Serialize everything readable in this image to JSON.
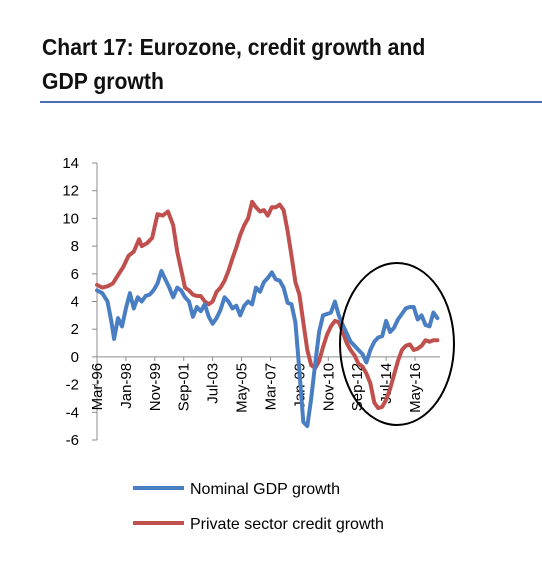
{
  "title": "Chart 17: Eurozone, credit growth and GDP growth",
  "colors": {
    "gdp": "#4a7ec2",
    "credit": "#c0504d",
    "accent_rule": "#4a6fb3"
  },
  "chart_data": {
    "type": "line",
    "title": "Chart 17: Eurozone, credit growth and GDP growth",
    "xlabel": "",
    "ylabel": "",
    "ylim": [
      -6,
      14
    ],
    "yticks": [
      14,
      12,
      10,
      8,
      6,
      4,
      2,
      0,
      -2,
      -4,
      -6
    ],
    "xlim": [
      "1996-03",
      "2017-12"
    ],
    "xticks": [
      {
        "label": "Mar-96",
        "date": "1996-03"
      },
      {
        "label": "Jan-98",
        "date": "1998-01"
      },
      {
        "label": "Nov-99",
        "date": "1999-11"
      },
      {
        "label": "Sep-01",
        "date": "2001-09"
      },
      {
        "label": "Jul-03",
        "date": "2003-07"
      },
      {
        "label": "May-05",
        "date": "2005-05"
      },
      {
        "label": "Mar-07",
        "date": "2007-03"
      },
      {
        "label": "Jan-09",
        "date": "2009-01"
      },
      {
        "label": "Nov-10",
        "date": "2010-11"
      },
      {
        "label": "Sep-12",
        "date": "2012-09"
      },
      {
        "label": "Jul-14",
        "date": "2014-07"
      },
      {
        "label": "May-16",
        "date": "2016-05"
      }
    ],
    "series": [
      {
        "name": "Nominal GDP growth",
        "color": "#4a7ec2",
        "points": [
          [
            "1996-03",
            4.8
          ],
          [
            "1996-07",
            4.6
          ],
          [
            "1996-11",
            4.0
          ],
          [
            "1997-02",
            2.5
          ],
          [
            "1997-04",
            1.3
          ],
          [
            "1997-07",
            2.8
          ],
          [
            "1997-10",
            2.2
          ],
          [
            "1998-01",
            3.5
          ],
          [
            "1998-04",
            4.6
          ],
          [
            "1998-07",
            3.5
          ],
          [
            "1998-10",
            4.3
          ],
          [
            "1999-01",
            4.0
          ],
          [
            "1999-04",
            4.4
          ],
          [
            "1999-07",
            4.5
          ],
          [
            "1999-10",
            4.8
          ],
          [
            "2000-01",
            5.3
          ],
          [
            "2000-04",
            6.2
          ],
          [
            "2000-07",
            5.6
          ],
          [
            "2000-10",
            5.0
          ],
          [
            "2001-01",
            4.3
          ],
          [
            "2001-04",
            5.0
          ],
          [
            "2001-07",
            4.8
          ],
          [
            "2001-10",
            4.3
          ],
          [
            "2002-01",
            4.0
          ],
          [
            "2002-04",
            2.9
          ],
          [
            "2002-07",
            3.6
          ],
          [
            "2002-10",
            3.3
          ],
          [
            "2003-01",
            3.8
          ],
          [
            "2003-04",
            2.9
          ],
          [
            "2003-07",
            2.4
          ],
          [
            "2003-10",
            2.8
          ],
          [
            "2004-01",
            3.4
          ],
          [
            "2004-04",
            4.3
          ],
          [
            "2004-07",
            4.0
          ],
          [
            "2004-10",
            3.5
          ],
          [
            "2005-01",
            3.7
          ],
          [
            "2005-04",
            3.0
          ],
          [
            "2005-07",
            3.7
          ],
          [
            "2005-10",
            4.0
          ],
          [
            "2006-01",
            3.8
          ],
          [
            "2006-04",
            5.0
          ],
          [
            "2006-07",
            4.7
          ],
          [
            "2006-10",
            5.4
          ],
          [
            "2007-01",
            5.7
          ],
          [
            "2007-04",
            6.1
          ],
          [
            "2007-07",
            5.6
          ],
          [
            "2007-10",
            5.5
          ],
          [
            "2008-01",
            5.0
          ],
          [
            "2008-04",
            3.9
          ],
          [
            "2008-07",
            3.8
          ],
          [
            "2008-10",
            2.5
          ],
          [
            "2009-01",
            -1.0
          ],
          [
            "2009-04",
            -4.7
          ],
          [
            "2009-07",
            -5.0
          ],
          [
            "2009-10",
            -3.0
          ],
          [
            "2010-01",
            -0.5
          ],
          [
            "2010-04",
            1.8
          ],
          [
            "2010-07",
            3.0
          ],
          [
            "2010-10",
            3.1
          ],
          [
            "2011-01",
            3.2
          ],
          [
            "2011-04",
            4.0
          ],
          [
            "2011-07",
            3.0
          ],
          [
            "2011-10",
            2.3
          ],
          [
            "2012-01",
            1.7
          ],
          [
            "2012-04",
            1.1
          ],
          [
            "2012-07",
            0.8
          ],
          [
            "2012-10",
            0.5
          ],
          [
            "2013-01",
            0.2
          ],
          [
            "2013-04",
            -0.4
          ],
          [
            "2013-07",
            0.5
          ],
          [
            "2013-10",
            1.1
          ],
          [
            "2014-01",
            1.4
          ],
          [
            "2014-04",
            1.5
          ],
          [
            "2014-07",
            2.6
          ],
          [
            "2014-10",
            1.8
          ],
          [
            "2015-01",
            2.1
          ],
          [
            "2015-04",
            2.7
          ],
          [
            "2015-07",
            3.1
          ],
          [
            "2015-10",
            3.5
          ],
          [
            "2016-01",
            3.6
          ],
          [
            "2016-04",
            3.6
          ],
          [
            "2016-07",
            2.7
          ],
          [
            "2016-10",
            3.0
          ],
          [
            "2017-01",
            2.3
          ],
          [
            "2017-04",
            2.2
          ],
          [
            "2017-07",
            3.2
          ],
          [
            "2017-10",
            2.8
          ]
        ]
      },
      {
        "name": "Private sector credit growth",
        "color": "#c0504d",
        "points": [
          [
            "1996-03",
            5.2
          ],
          [
            "1996-07",
            5.0
          ],
          [
            "1996-11",
            5.1
          ],
          [
            "1997-03",
            5.3
          ],
          [
            "1997-07",
            5.9
          ],
          [
            "1997-11",
            6.5
          ],
          [
            "1998-03",
            7.3
          ],
          [
            "1998-07",
            7.6
          ],
          [
            "1998-11",
            8.5
          ],
          [
            "1999-01",
            8.0
          ],
          [
            "1999-05",
            8.2
          ],
          [
            "1999-09",
            8.6
          ],
          [
            "2000-01",
            10.3
          ],
          [
            "2000-05",
            10.2
          ],
          [
            "2000-09",
            10.5
          ],
          [
            "2001-01",
            9.5
          ],
          [
            "2001-04",
            7.6
          ],
          [
            "2001-07",
            6.3
          ],
          [
            "2001-10",
            5.0
          ],
          [
            "2002-01",
            4.8
          ],
          [
            "2002-04",
            4.5
          ],
          [
            "2002-07",
            4.4
          ],
          [
            "2002-10",
            4.4
          ],
          [
            "2003-01",
            4.0
          ],
          [
            "2003-04",
            3.8
          ],
          [
            "2003-07",
            4.0
          ],
          [
            "2003-10",
            4.7
          ],
          [
            "2004-01",
            5.0
          ],
          [
            "2004-04",
            5.5
          ],
          [
            "2004-07",
            6.2
          ],
          [
            "2004-10",
            7.1
          ],
          [
            "2005-01",
            7.9
          ],
          [
            "2005-04",
            8.8
          ],
          [
            "2005-07",
            9.5
          ],
          [
            "2005-10",
            10.0
          ],
          [
            "2006-01",
            11.2
          ],
          [
            "2006-04",
            10.8
          ],
          [
            "2006-07",
            10.5
          ],
          [
            "2006-10",
            10.6
          ],
          [
            "2007-01",
            10.2
          ],
          [
            "2007-04",
            10.8
          ],
          [
            "2007-07",
            10.8
          ],
          [
            "2007-10",
            11.0
          ],
          [
            "2008-01",
            10.6
          ],
          [
            "2008-04",
            9.1
          ],
          [
            "2008-07",
            7.3
          ],
          [
            "2008-10",
            5.4
          ],
          [
            "2009-01",
            4.5
          ],
          [
            "2009-04",
            2.5
          ],
          [
            "2009-07",
            0.5
          ],
          [
            "2009-10",
            -0.6
          ],
          [
            "2010-01",
            -0.8
          ],
          [
            "2010-04",
            -0.3
          ],
          [
            "2010-07",
            0.7
          ],
          [
            "2010-10",
            1.6
          ],
          [
            "2011-01",
            2.2
          ],
          [
            "2011-04",
            2.6
          ],
          [
            "2011-07",
            2.5
          ],
          [
            "2011-10",
            1.8
          ],
          [
            "2012-01",
            1.0
          ],
          [
            "2012-04",
            0.5
          ],
          [
            "2012-07",
            0.1
          ],
          [
            "2012-10",
            -0.5
          ],
          [
            "2013-01",
            -0.7
          ],
          [
            "2013-04",
            -1.2
          ],
          [
            "2013-07",
            -1.9
          ],
          [
            "2013-10",
            -3.3
          ],
          [
            "2014-01",
            -3.7
          ],
          [
            "2014-04",
            -3.6
          ],
          [
            "2014-07",
            -3.1
          ],
          [
            "2014-10",
            -2.3
          ],
          [
            "2015-01",
            -1.3
          ],
          [
            "2015-04",
            -0.3
          ],
          [
            "2015-07",
            0.5
          ],
          [
            "2015-10",
            0.8
          ],
          [
            "2016-01",
            0.9
          ],
          [
            "2016-04",
            0.5
          ],
          [
            "2016-07",
            0.6
          ],
          [
            "2016-10",
            0.8
          ],
          [
            "2017-01",
            1.2
          ],
          [
            "2017-04",
            1.1
          ],
          [
            "2017-07",
            1.2
          ],
          [
            "2017-10",
            1.2
          ]
        ]
      }
    ],
    "annotations": [
      {
        "type": "ellipse",
        "description": "circle highlighting 2012-2017 period"
      }
    ],
    "legend": {
      "placement": "bottom"
    },
    "grid": false
  }
}
